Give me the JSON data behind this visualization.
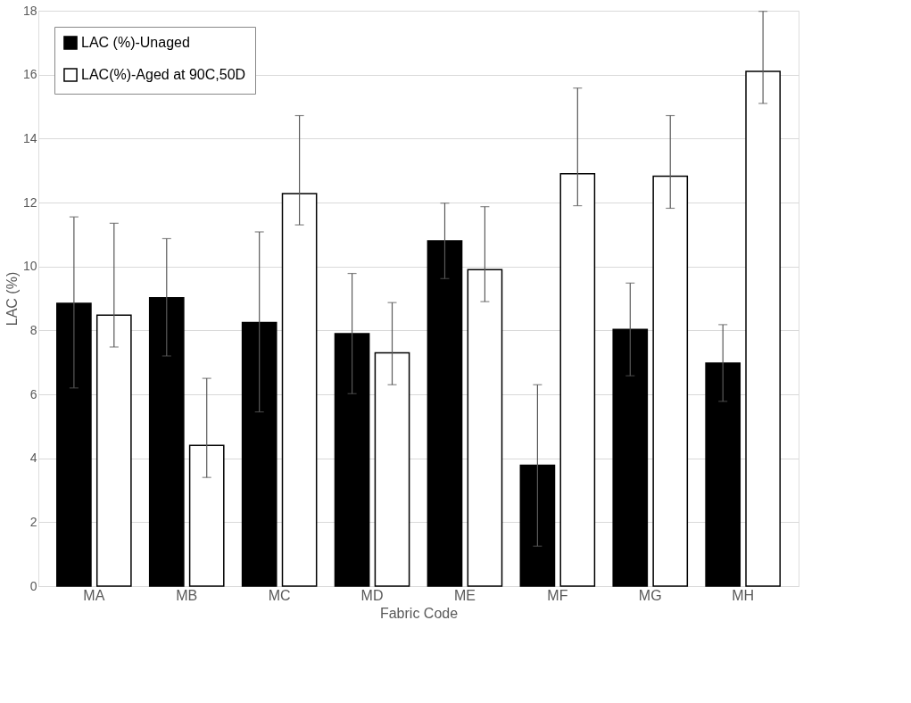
{
  "chart_data": {
    "type": "bar",
    "xlabel": "Fabric Code",
    "ylabel": "LAC (%)",
    "categories": [
      "MA",
      "MB",
      "MC",
      "MD",
      "ME",
      "MF",
      "MG",
      "MH"
    ],
    "series": [
      {
        "name": "LAC (%)-Unaged",
        "color": "#000000",
        "values": [
          8.85,
          9.02,
          8.25,
          7.9,
          10.8,
          3.78,
          8.03,
          6.98
        ],
        "errors": [
          [
            6.2,
            11.55
          ],
          [
            7.2,
            10.87
          ],
          [
            5.45,
            11.08
          ],
          [
            6.02,
            9.78
          ],
          [
            9.62,
            11.98
          ],
          [
            1.25,
            6.3
          ],
          [
            6.58,
            9.48
          ],
          [
            5.78,
            8.18
          ]
        ]
      },
      {
        "name": "LAC(%)-Aged at 90C,50D",
        "color": "#ffffff",
        "values": [
          8.48,
          4.4,
          12.28,
          7.3,
          9.9,
          12.9,
          12.82,
          16.1
        ],
        "errors": [
          [
            7.48,
            11.35
          ],
          [
            3.4,
            6.5
          ],
          [
            11.3,
            14.72
          ],
          [
            6.3,
            8.87
          ],
          [
            8.9,
            11.87
          ],
          [
            11.9,
            15.58
          ],
          [
            11.82,
            14.72
          ],
          [
            15.1,
            17.98
          ]
        ]
      }
    ],
    "ylim": [
      0,
      18
    ],
    "yticks": [
      0,
      2,
      4,
      6,
      8,
      10,
      12,
      14,
      16,
      18
    ],
    "grid": "y",
    "legend": "top left"
  }
}
